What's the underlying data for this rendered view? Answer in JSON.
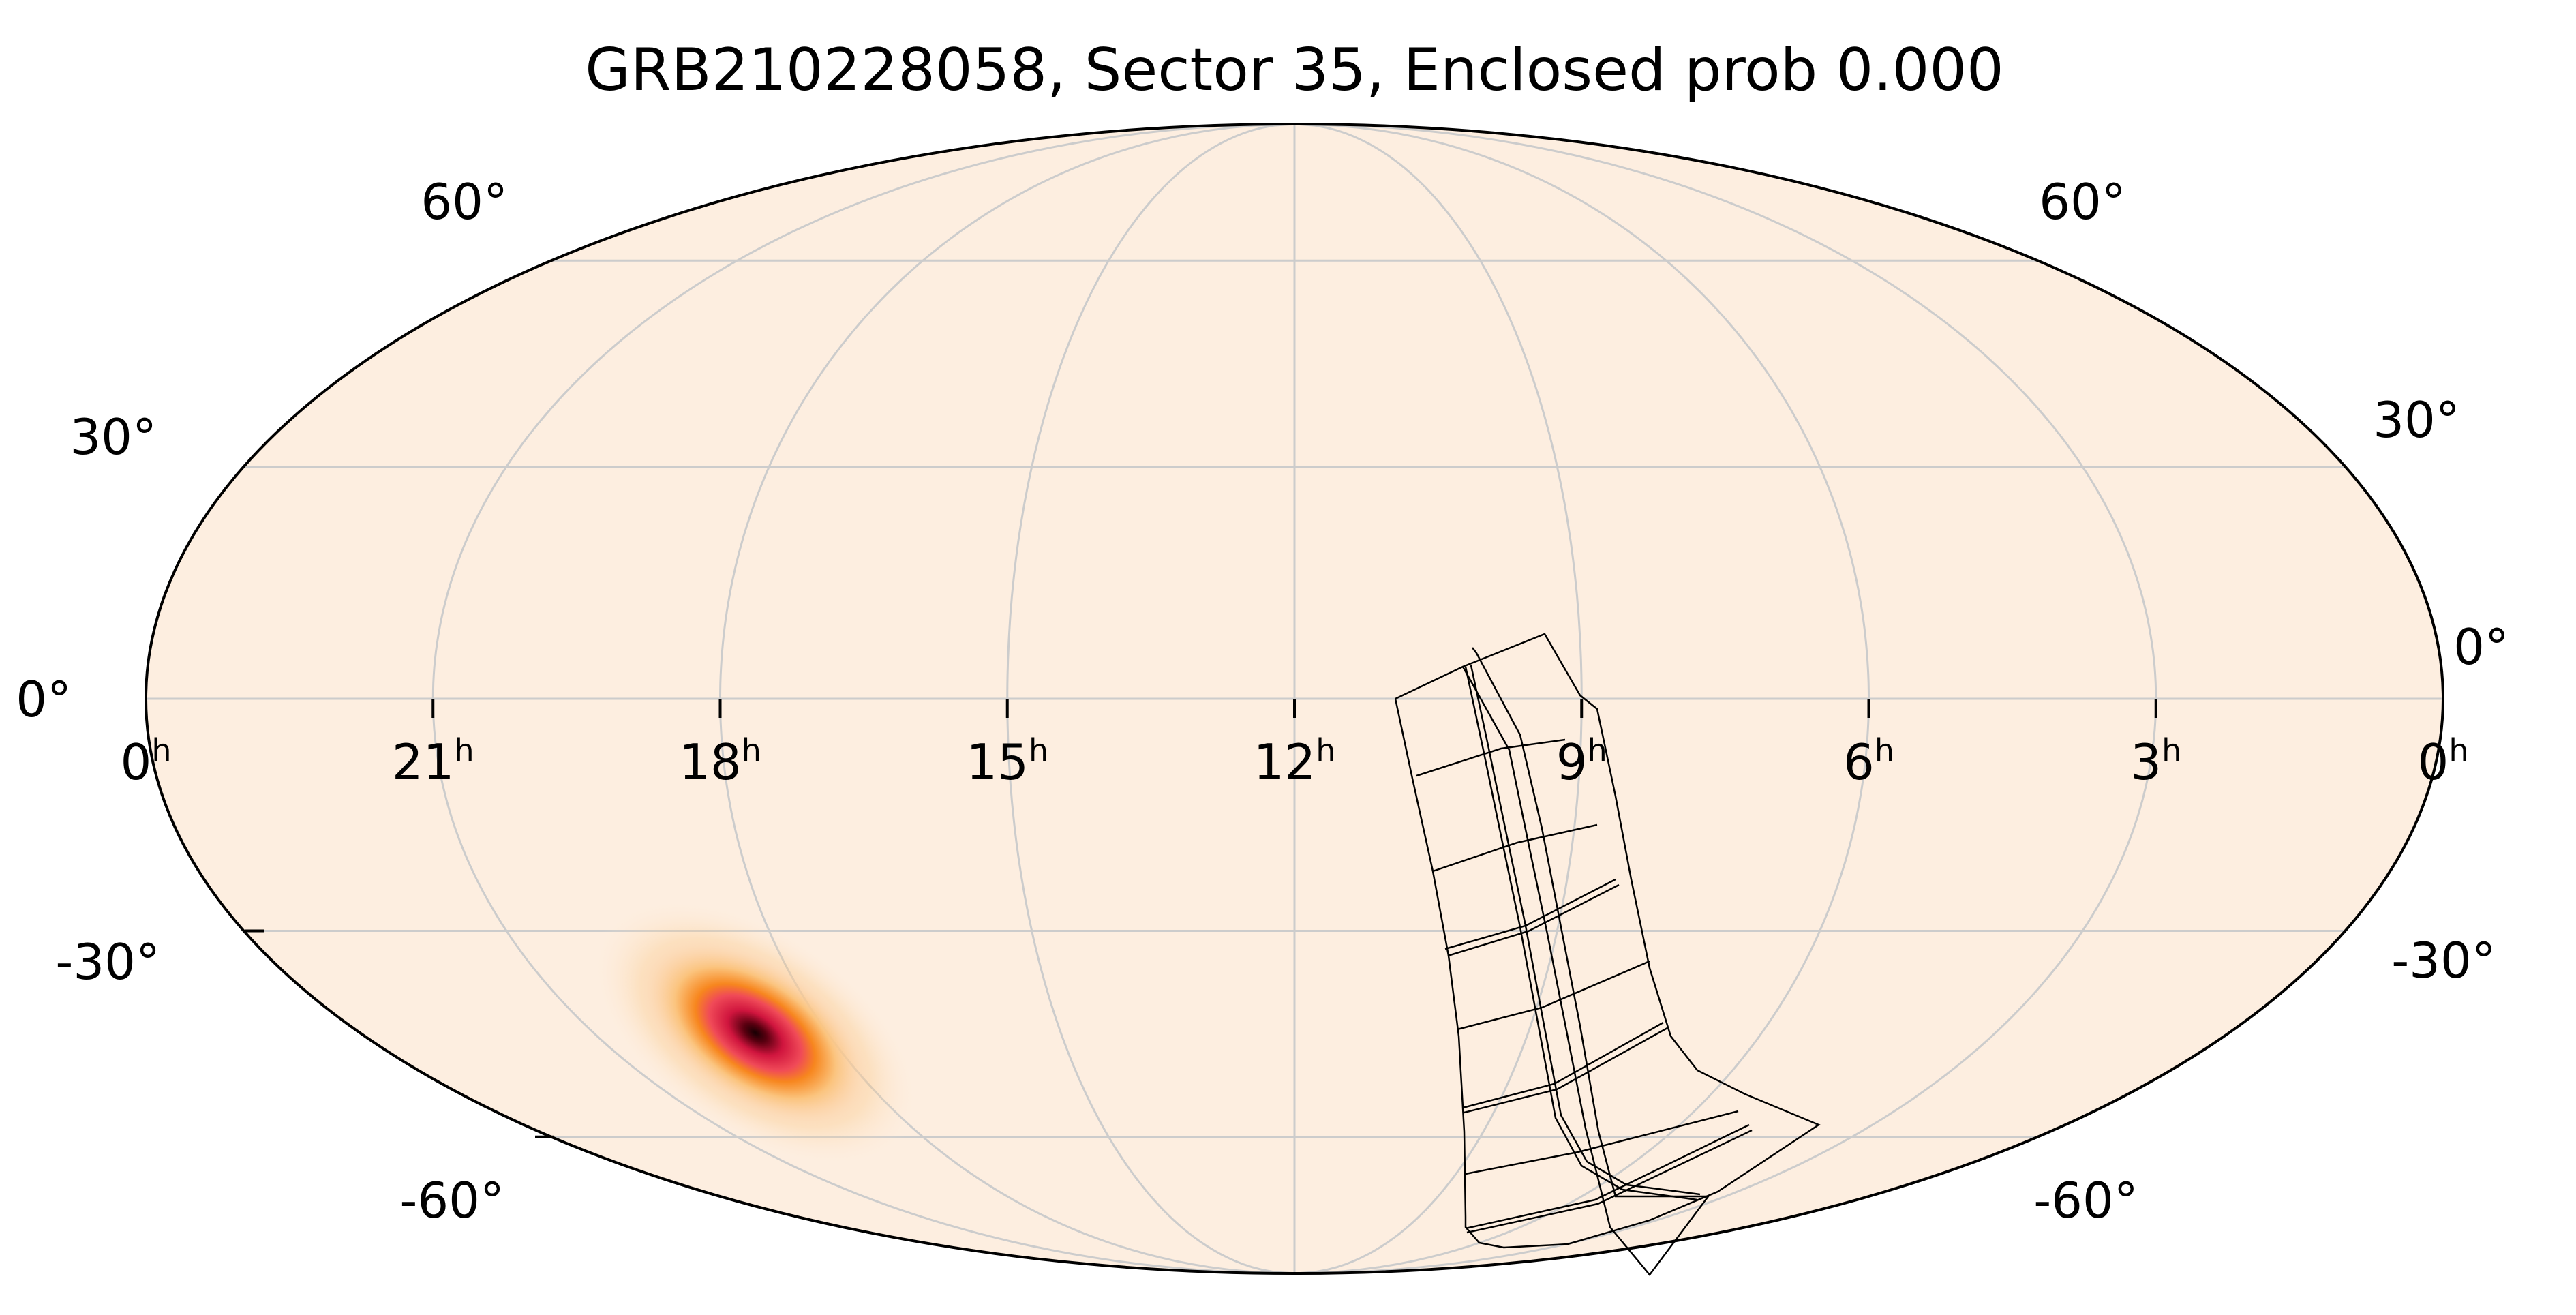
{
  "chart_data": {
    "type": "heatmap",
    "title": "GRB210228058, Sector 35, Enclosed prob 0.000",
    "projection": "mollweide",
    "ra_tick_labels": [
      {
        "hours": 24,
        "label": "0",
        "unit": "h"
      },
      {
        "hours": 21,
        "label": "21",
        "unit": "h"
      },
      {
        "hours": 18,
        "label": "18",
        "unit": "h"
      },
      {
        "hours": 15,
        "label": "15",
        "unit": "h"
      },
      {
        "hours": 12,
        "label": "12",
        "unit": "h"
      },
      {
        "hours": 9,
        "label": "9",
        "unit": "h"
      },
      {
        "hours": 6,
        "label": "6",
        "unit": "h"
      },
      {
        "hours": 3,
        "label": "3",
        "unit": "h"
      },
      {
        "hours": 0,
        "label": "0",
        "unit": "h"
      }
    ],
    "dec_tick_labels_left": [
      {
        "dec": 60,
        "label": "60°"
      },
      {
        "dec": 30,
        "label": "30°"
      },
      {
        "dec": 0,
        "label": "0°"
      },
      {
        "dec": -30,
        "label": "-30°"
      },
      {
        "dec": -60,
        "label": "-60°"
      }
    ],
    "dec_tick_labels_right": [
      {
        "dec": 60,
        "label": "60°"
      },
      {
        "dec": 30,
        "label": "30°"
      },
      {
        "dec": 0,
        "label": "0°"
      },
      {
        "dec": -30,
        "label": "-30°"
      },
      {
        "dec": -60,
        "label": "-60°"
      }
    ],
    "grid": true,
    "probability_peak": {
      "ra_hours": 17.6,
      "dec": -44
    },
    "colormap": "sequential light-peach to black",
    "colors": {
      "background": "#fdeee0",
      "grid": "#cccccc",
      "outline": "#000000",
      "low": "#fdeee0",
      "mid_orange": "#f7861e",
      "mid_red": "#e8254a",
      "high": "#170003"
    },
    "sector_footprint": {
      "description": "TESS Sector 35 camera/CCD footprint",
      "cameras": 4,
      "ccds_per_camera": 4
    }
  }
}
